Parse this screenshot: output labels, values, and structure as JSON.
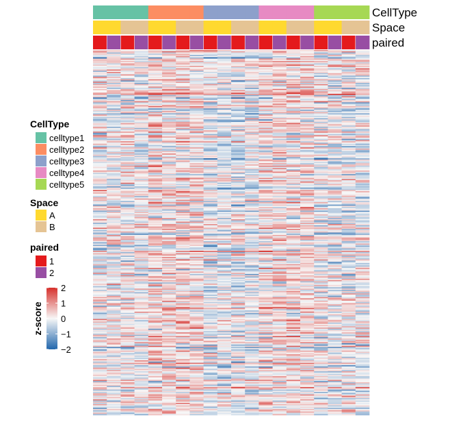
{
  "chart_data": {
    "type": "heatmap",
    "n_columns": 20,
    "n_rows": 300,
    "annotation_tracks": [
      {
        "name": "CellType",
        "column_values": [
          "celltype1",
          "celltype1",
          "celltype1",
          "celltype1",
          "celltype2",
          "celltype2",
          "celltype2",
          "celltype2",
          "celltype3",
          "celltype3",
          "celltype3",
          "celltype3",
          "celltype4",
          "celltype4",
          "celltype4",
          "celltype4",
          "celltype5",
          "celltype5",
          "celltype5",
          "celltype5"
        ]
      },
      {
        "name": "Space",
        "column_values": [
          "A",
          "A",
          "B",
          "B",
          "A",
          "A",
          "B",
          "B",
          "A",
          "A",
          "B",
          "B",
          "A",
          "A",
          "B",
          "B",
          "A",
          "A",
          "B",
          "B"
        ]
      },
      {
        "name": "paired",
        "column_values": [
          "1",
          "2",
          "1",
          "2",
          "1",
          "2",
          "1",
          "2",
          "1",
          "2",
          "1",
          "2",
          "1",
          "2",
          "1",
          "2",
          "1",
          "2",
          "1",
          "2"
        ]
      }
    ],
    "legends": [
      {
        "title": "CellType",
        "entries": [
          {
            "label": "celltype1",
            "color": "#66C2A5"
          },
          {
            "label": "celltype2",
            "color": "#FC8D62"
          },
          {
            "label": "celltype3",
            "color": "#8DA0CB"
          },
          {
            "label": "celltype4",
            "color": "#E78AC3"
          },
          {
            "label": "celltype5",
            "color": "#A6D854"
          }
        ]
      },
      {
        "title": "Space",
        "entries": [
          {
            "label": "A",
            "color": "#FFD92F"
          },
          {
            "label": "B",
            "color": "#E5C494"
          }
        ]
      },
      {
        "title": "paired",
        "entries": [
          {
            "label": "1",
            "color": "#E41A1C"
          },
          {
            "label": "2",
            "color": "#984EA3"
          }
        ]
      }
    ],
    "colorbar": {
      "title": "z-score",
      "range": [
        -2,
        2
      ],
      "ticks": [
        "2",
        "1",
        "0",
        "−1",
        "−2"
      ],
      "tick_values": [
        2,
        1,
        0,
        -1,
        -2
      ],
      "color_low": "#2166AC",
      "color_mid": "#F7F7F7",
      "color_high": "#D6302B"
    },
    "column_group_means": [
      0.0,
      0.25,
      -0.15,
      0.2,
      -0.1
    ]
  }
}
